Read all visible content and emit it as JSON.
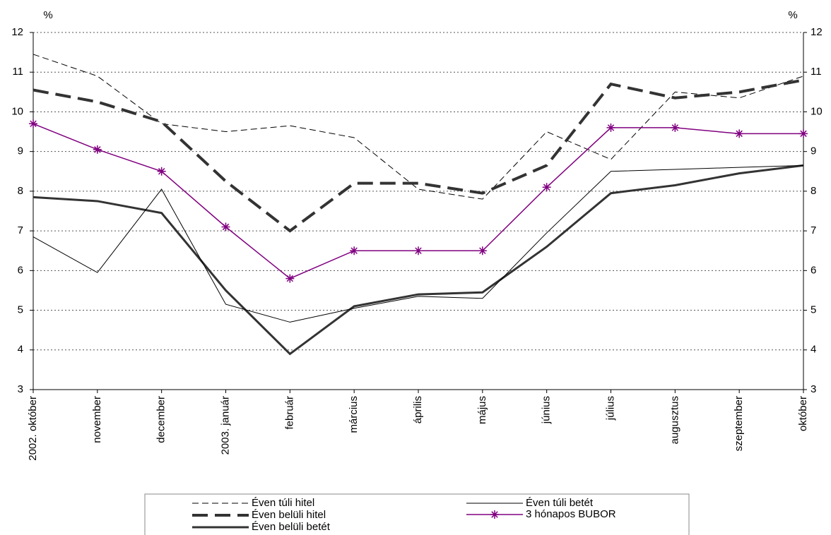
{
  "chart_data": {
    "type": "line",
    "y_unit_left": "%",
    "y_unit_right": "%",
    "categories": [
      "2002. október",
      "november",
      "december",
      "2003. január",
      "február",
      "március",
      "április",
      "május",
      "június",
      "július",
      "augusztus",
      "szeptember",
      "október"
    ],
    "series": [
      {
        "name": "Éven túli hitel",
        "color": "#000000",
        "style": "dashed",
        "weight": "thin",
        "values": [
          11.45,
          10.9,
          9.7,
          9.5,
          9.65,
          9.35,
          8.05,
          7.8,
          9.5,
          8.8,
          10.5,
          10.35,
          10.9
        ]
      },
      {
        "name": "Éven belüli hitel",
        "color": "#333333",
        "style": "dashed",
        "weight": "thick",
        "values": [
          10.55,
          10.25,
          9.75,
          8.25,
          7.0,
          8.2,
          8.2,
          7.95,
          8.65,
          10.7,
          10.35,
          10.5,
          10.8
        ]
      },
      {
        "name": "Éven belüli betét",
        "color": "#333333",
        "style": "solid",
        "weight": "thick",
        "values": [
          7.85,
          7.75,
          7.45,
          5.5,
          3.9,
          5.1,
          5.4,
          5.45,
          6.6,
          7.95,
          8.15,
          8.45,
          8.65
        ]
      },
      {
        "name": "Éven túli betét",
        "color": "#000000",
        "style": "solid",
        "weight": "thin",
        "values": [
          6.85,
          5.95,
          8.05,
          5.15,
          4.7,
          5.05,
          5.35,
          5.3,
          6.95,
          8.5,
          8.55,
          8.6,
          8.65
        ]
      },
      {
        "name": "3 hónapos BUBOR",
        "color": "#800080",
        "style": "solid",
        "weight": "thin",
        "marker": "star",
        "values": [
          9.7,
          9.05,
          8.5,
          7.1,
          5.8,
          6.5,
          6.5,
          6.5,
          8.1,
          9.6,
          9.6,
          9.45,
          9.45
        ]
      }
    ],
    "ylim": [
      3,
      12
    ],
    "yticks": [
      3,
      4,
      5,
      6,
      7,
      8,
      9,
      10,
      11,
      12
    ],
    "y2lim": [
      3,
      12
    ],
    "y2ticks": [
      3,
      4,
      5,
      6,
      7,
      8,
      9,
      10,
      11,
      12
    ],
    "grid": true
  }
}
